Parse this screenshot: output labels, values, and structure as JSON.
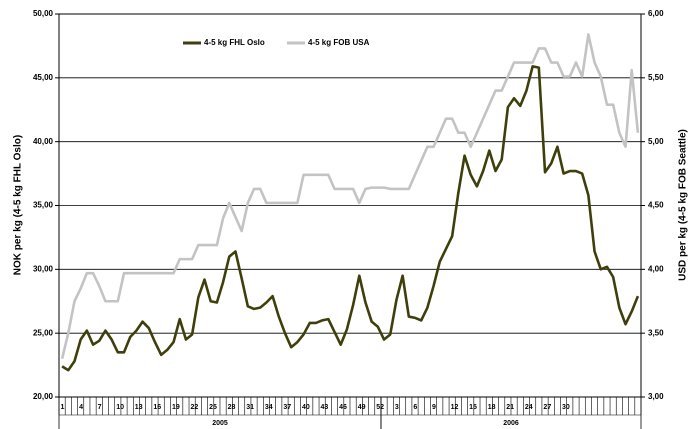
{
  "chart_data": {
    "type": "line",
    "y_label": "NOK per kg (4-5 kg FHL Oslo)",
    "y2_label": "USD per kg (4-5 kg FOB Seattle)",
    "categories": [
      "1",
      null,
      null,
      "4",
      null,
      null,
      "7",
      null,
      null,
      "10",
      null,
      null,
      "13",
      null,
      null,
      "16",
      null,
      null,
      "19",
      null,
      null,
      "22",
      null,
      null,
      "25",
      null,
      null,
      "28",
      null,
      null,
      "31",
      null,
      null,
      "34",
      null,
      null,
      "37",
      null,
      null,
      "40",
      null,
      null,
      "43",
      null,
      null,
      "46",
      null,
      null,
      "49",
      null,
      null,
      "52",
      null,
      null,
      "3",
      null,
      null,
      "6",
      null,
      null,
      "9",
      null,
      null,
      "12",
      null,
      null,
      "15",
      null,
      null,
      "18",
      null,
      null,
      "21",
      null,
      null,
      "24",
      null,
      null,
      "27",
      null,
      null,
      "30",
      null,
      null,
      null,
      null,
      null,
      null,
      null,
      null,
      null,
      null,
      null,
      null
    ],
    "x_groups": [
      {
        "label": "2005",
        "count": 52
      },
      {
        "label": "2006",
        "count": 42
      }
    ],
    "series": [
      {
        "name": "4-5 kg FHL Oslo",
        "color": "#3f3f0c",
        "axis": "y",
        "values": [
          22.4,
          22.1,
          22.8,
          24.5,
          25.2,
          24.1,
          24.4,
          25.2,
          24.5,
          23.5,
          23.5,
          24.7,
          25.2,
          25.9,
          25.4,
          24.3,
          23.3,
          23.7,
          24.3,
          26.1,
          24.5,
          24.9,
          27.8,
          29.2,
          27.5,
          27.4,
          29.0,
          31.0,
          31.4,
          29.3,
          27.1,
          26.9,
          27.0,
          27.4,
          27.9,
          26.3,
          25.0,
          23.9,
          24.3,
          24.9,
          25.8,
          25.8,
          26.0,
          26.1,
          25.1,
          24.1,
          25.3,
          27.2,
          29.5,
          27.4,
          25.9,
          25.5,
          24.5,
          24.9,
          27.6,
          29.5,
          26.3,
          26.2,
          26.0,
          27.0,
          28.7,
          30.6,
          31.6,
          32.6,
          36.0,
          38.9,
          37.4,
          36.5,
          37.7,
          39.3,
          37.7,
          38.6,
          42.7,
          43.4,
          42.8,
          44.0,
          45.9,
          45.8,
          37.6,
          38.3,
          39.6,
          37.5,
          37.7,
          37.7,
          37.5,
          35.8,
          31.4,
          30.0,
          30.2,
          29.4,
          27.0,
          25.7,
          26.7,
          27.9
        ]
      },
      {
        "name": "4-5 kg FOB USA",
        "color": "#c3c3c3",
        "axis": "y2",
        "values": [
          3.3,
          3.5,
          3.75,
          3.85,
          3.97,
          3.97,
          3.87,
          3.75,
          3.75,
          3.75,
          3.97,
          3.97,
          3.97,
          3.97,
          3.97,
          3.97,
          3.97,
          3.97,
          3.97,
          4.08,
          4.08,
          4.08,
          4.19,
          4.19,
          4.19,
          4.19,
          4.4,
          4.52,
          4.41,
          4.3,
          4.52,
          4.63,
          4.63,
          4.52,
          4.52,
          4.52,
          4.52,
          4.52,
          4.52,
          4.74,
          4.74,
          4.74,
          4.74,
          4.74,
          4.63,
          4.63,
          4.63,
          4.63,
          4.52,
          4.63,
          4.64,
          4.64,
          4.64,
          4.63,
          4.63,
          4.63,
          4.63,
          4.74,
          4.85,
          4.96,
          4.96,
          5.07,
          5.18,
          5.18,
          5.07,
          5.07,
          4.96,
          5.07,
          5.18,
          5.29,
          5.4,
          5.4,
          5.51,
          5.62,
          5.62,
          5.62,
          5.62,
          5.73,
          5.73,
          5.62,
          5.62,
          5.51,
          5.51,
          5.62,
          5.51,
          5.84,
          5.62,
          5.51,
          5.29,
          5.29,
          5.07,
          4.96,
          5.56,
          5.07
        ]
      }
    ],
    "ylim": [
      20,
      50
    ],
    "yticks": [
      {
        "value": 20,
        "label": "20,00"
      },
      {
        "value": 25,
        "label": "25,00"
      },
      {
        "value": 30,
        "label": "30,00"
      },
      {
        "value": 35,
        "label": "35,00"
      },
      {
        "value": 40,
        "label": "40,00"
      },
      {
        "value": 45,
        "label": "45,00"
      },
      {
        "value": 50,
        "label": "50,00"
      }
    ],
    "y2lim": [
      3,
      6
    ],
    "y2ticks": [
      {
        "value": 3,
        "label": "3,00"
      },
      {
        "value": 3.5,
        "label": "3,50"
      },
      {
        "value": 4,
        "label": "4,00"
      },
      {
        "value": 4.5,
        "label": "4,50"
      },
      {
        "value": 5,
        "label": "5,00"
      },
      {
        "value": 5.5,
        "label": "5,50"
      },
      {
        "value": 6,
        "label": "6,00"
      }
    ],
    "grid": true,
    "legend": "top"
  }
}
